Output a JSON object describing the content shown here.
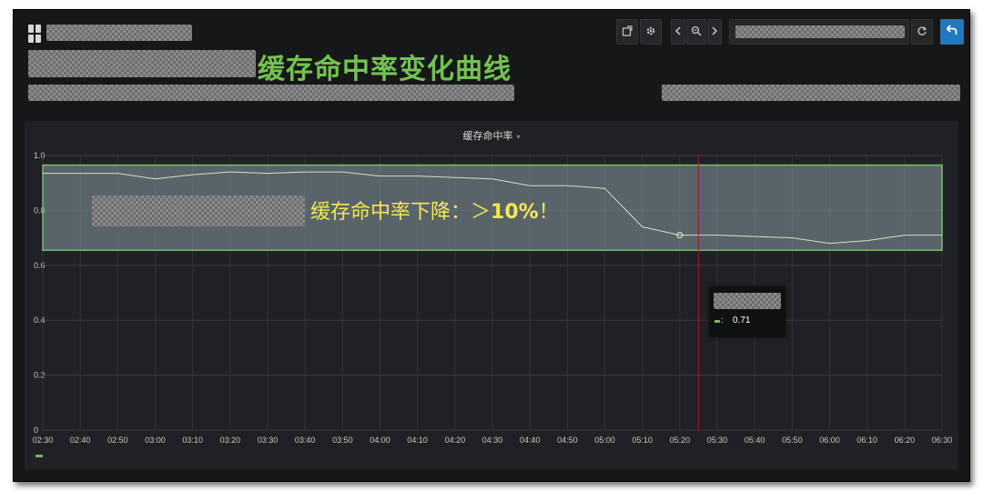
{
  "headline": "缓存命中率变化曲线",
  "panel": {
    "title": "缓存命中率"
  },
  "annotation": {
    "prefix": "缓存命中率下降：＞",
    "value": "10%",
    "suffix": "！"
  },
  "tooltip": {
    "separator": ":",
    "value": "0.71"
  },
  "toolbar": {
    "share_icon": "share-icon",
    "settings_icon": "gear-icon",
    "prev_icon": "chevron-left-icon",
    "zoom_icon": "zoom-out-icon",
    "next_icon": "chevron-right-icon",
    "refresh_icon": "refresh-icon",
    "back_icon": "back-arrow-icon"
  },
  "colors": {
    "series": "#7eb26d",
    "headline": "#73c34f",
    "annotation": "#f2e94e",
    "threshold": "#73bf69",
    "cursor": "#a31d1d"
  },
  "chart_data": {
    "type": "line",
    "title": "缓存命中率",
    "xlabel": "",
    "ylabel": "",
    "categories": [
      "02:30",
      "02:40",
      "02:50",
      "03:00",
      "03:10",
      "03:20",
      "03:30",
      "03:40",
      "03:50",
      "04:00",
      "04:10",
      "04:20",
      "04:30",
      "04:40",
      "04:50",
      "05:00",
      "05:10",
      "05:20",
      "05:30",
      "05:40",
      "05:50",
      "06:00",
      "06:10",
      "06:20",
      "06:30"
    ],
    "series": [
      {
        "values": [
          0.935,
          0.935,
          0.935,
          0.915,
          0.93,
          0.94,
          0.935,
          0.94,
          0.94,
          0.925,
          0.925,
          0.92,
          0.915,
          0.89,
          0.89,
          0.88,
          0.74,
          0.71,
          0.71,
          0.705,
          0.7,
          0.68,
          0.69,
          0.71,
          0.71
        ]
      }
    ],
    "ylim": [
      0,
      1.0
    ],
    "yticks": [
      "0",
      "0.2",
      "0.4",
      "0.6",
      "0.8",
      "1.0"
    ],
    "highlight_band": [
      0.655,
      0.965
    ],
    "cursor_x": "05:25",
    "marker_x": "05:20",
    "grid": true,
    "legend": "bottom-left"
  }
}
